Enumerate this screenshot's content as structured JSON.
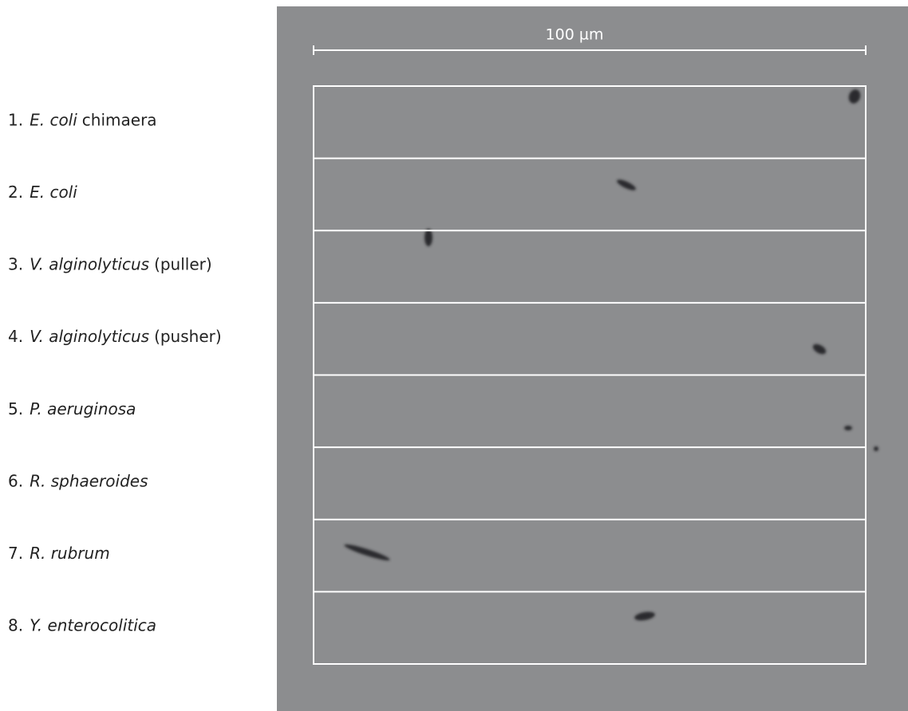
{
  "scale_bar": {
    "label": "100 µm"
  },
  "items": [
    {
      "number": "1.",
      "species": "E. coli",
      "suffix": "chimaera"
    },
    {
      "number": "2.",
      "species": "E. coli"
    },
    {
      "number": "3.",
      "species": "V. alginolyticus",
      "suffix": "(puller)"
    },
    {
      "number": "4.",
      "species": "V. alginolyticus",
      "suffix": "(pusher)"
    },
    {
      "number": "5.",
      "species": "P. aeruginosa"
    },
    {
      "number": "6.",
      "species": "R. sphaeroides"
    },
    {
      "number": "7.",
      "species": "R. rubrum"
    },
    {
      "number": "8.",
      "species": "Y. enterocolitica"
    }
  ]
}
